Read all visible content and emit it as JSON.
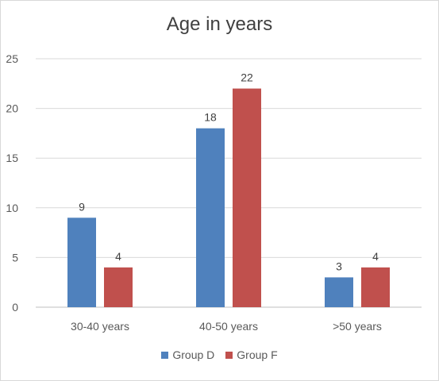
{
  "chart_data": {
    "type": "bar",
    "title": "Age in years",
    "categories": [
      "30-40 years",
      "40-50 years",
      ">50 years"
    ],
    "series": [
      {
        "name": "Group D",
        "values": [
          9,
          18,
          3
        ],
        "color": "#4f81bd"
      },
      {
        "name": "Group F",
        "values": [
          4,
          22,
          4
        ],
        "color": "#c0504d"
      }
    ],
    "ylim": [
      0,
      25
    ],
    "yticks": [
      0,
      5,
      10,
      15,
      20,
      25
    ],
    "grid": true,
    "legend_position": "bottom",
    "data_labels": true
  }
}
